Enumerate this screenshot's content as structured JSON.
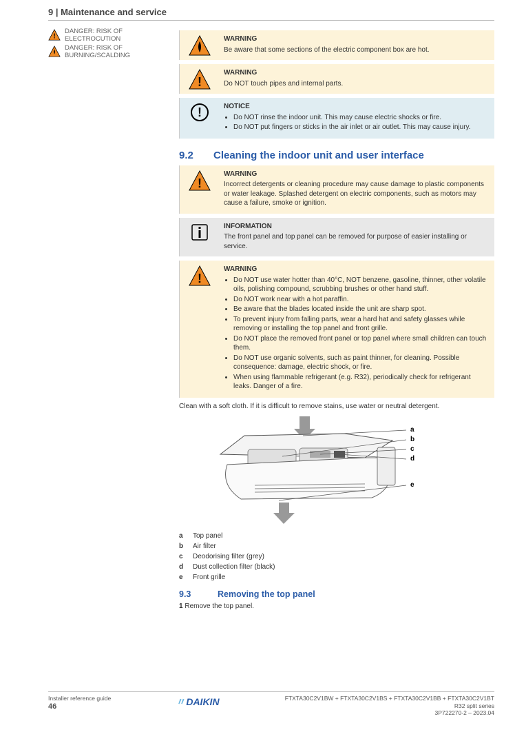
{
  "header_title": "9 | Maintenance and service",
  "left": {
    "safety_items": [
      {
        "icon": "warn",
        "text": "DANGER: RISK OF ELECTROCUTION"
      },
      {
        "icon": "fire",
        "text": "DANGER: RISK OF BURNING/SCALDING"
      }
    ]
  },
  "callouts": [
    {
      "type": "warn-fire",
      "icon": "fire",
      "title": "WARNING",
      "lines": [
        "Be aware that some sections of the electric component box are hot."
      ]
    },
    {
      "type": "warn",
      "icon": "warn",
      "title": "WARNING",
      "lines": [
        "Do NOT touch pipes and internal parts."
      ]
    },
    {
      "type": "notice",
      "icon": "notice",
      "title": "NOTICE",
      "lines": [
        "Do NOT rinse the indoor unit. This may cause electric shocks or fire.",
        "Do NOT put fingers or sticks in the air inlet or air outlet. This may cause injury."
      ]
    }
  ],
  "sec9_2": {
    "num": "9.2",
    "title": "Cleaning the indoor unit and user interface"
  },
  "sec9_2_warn": {
    "type": "warn",
    "icon": "warn",
    "title": "WARNING",
    "lines": [
      "Incorrect detergents or cleaning procedure may cause damage to plastic components or water leakage. Splashed detergent on electric components, such as motors may cause a failure, smoke or ignition."
    ]
  },
  "sec9_2_info": {
    "type": "info",
    "icon": "info",
    "title": "INFORMATION",
    "lines": [
      "The front panel and top panel can be removed for purpose of easier installing or service."
    ]
  },
  "sec9_2_warn2": {
    "type": "warn",
    "icon": "warn",
    "title": "WARNING",
    "bullets": [
      "Do NOT use water hotter than 40°C, NOT benzene, gasoline, thinner, other volatile oils, polishing compound, scrubbing brushes or other hand stuff.",
      "Do NOT work near with a hot paraffin.",
      "Be aware that the blades located inside the unit are sharp spot.",
      "To prevent injury from falling parts, wear a hard hat and safety glasses while removing or installing the top panel and front grille.",
      "Do NOT place the removed front panel or top panel where small children can touch them.",
      "Do NOT use organic solvents, such as paint thinner, for cleaning. Possible consequence: damage, electric shock, or fire.",
      "When using flammable refrigerant (e.g. R32), periodically check for refrigerant leaks. Danger of a fire."
    ],
    "post": "Clean with a soft cloth. If it is difficult to remove stains, use water or neutral detergent."
  },
  "fig_labels": [
    "a",
    "b",
    "c",
    "d",
    "e"
  ],
  "legend": [
    {
      "k": "a",
      "v": "Top panel"
    },
    {
      "k": "b",
      "v": "Air filter"
    },
    {
      "k": "c",
      "v": "Deodorising filter (grey)"
    },
    {
      "k": "d",
      "v": "Dust collection filter (black)"
    },
    {
      "k": "e",
      "v": "Front grille"
    }
  ],
  "sec9_3": {
    "num": "9.3",
    "title": "Removing the top panel"
  },
  "sec9_3_steps": [
    {
      "n": "1",
      "t": "Remove the top panel."
    }
  ],
  "footer": {
    "left_line1": "Installer reference guide",
    "left_line2": "46",
    "center_logo": "DAIKIN",
    "right_line1": "FTXTA30C2V1BW + FTXTA30C2V1BS + FTXTA30C2V1BB + FTXTA30C2V1BT",
    "right_line2": "R32 split series",
    "right_line3": "3P722270-2 – 2023.04"
  },
  "colors": {
    "warn_bg": "#fdf3d9",
    "notice_bg": "#e0edf2",
    "info_bg": "#e8e8e8",
    "heading": "#2b5ca8",
    "warn_orange": "#f08a24",
    "warn_border": "#000"
  }
}
